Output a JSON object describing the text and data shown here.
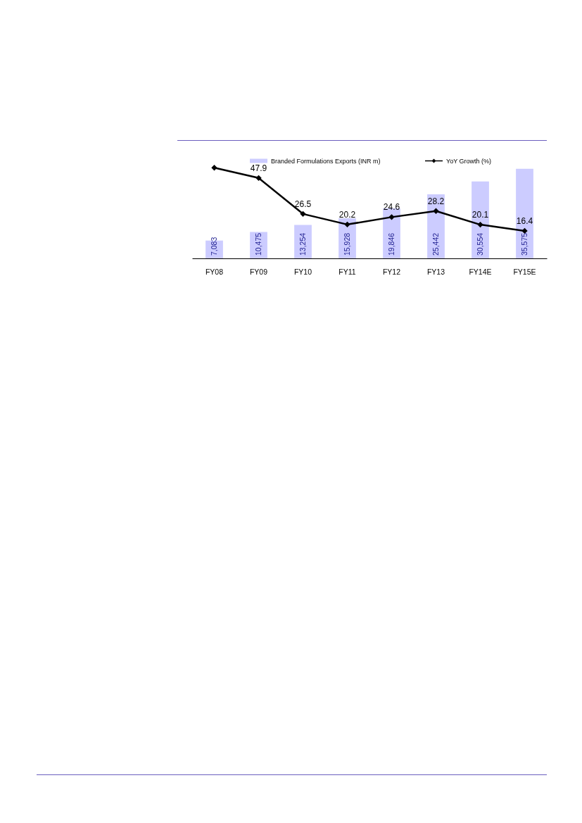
{
  "chart_data": {
    "type": "bar",
    "categories": [
      "FY08",
      "FY09",
      "FY10",
      "FY11",
      "FY12",
      "FY13",
      "FY14E",
      "FY15E"
    ],
    "series": [
      {
        "name": "Branded Formulations Exports (INR m)",
        "color": "#ccccff",
        "values": [
          7083,
          10475,
          13254,
          15928,
          19846,
          25442,
          30554,
          35575
        ],
        "value_labels": [
          "7,083",
          "10,475",
          "13,254",
          "15,928",
          "19,846",
          "25,442",
          "30,554",
          "35,575"
        ]
      },
      {
        "name": "YoY Growth (%)",
        "type": "line",
        "axis": "y2",
        "color": "#000000",
        "values": [
          54,
          47.9,
          26.5,
          20.2,
          24.6,
          28.2,
          20.1,
          16.4
        ],
        "value_labels": [
          null,
          "47.9",
          "26.5",
          "20.2",
          "24.6",
          "28.2",
          "20.1",
          "16.4"
        ]
      }
    ],
    "legend": "top",
    "marker": "diamond",
    "line_style": "solid",
    "tick_labels": "x"
  }
}
